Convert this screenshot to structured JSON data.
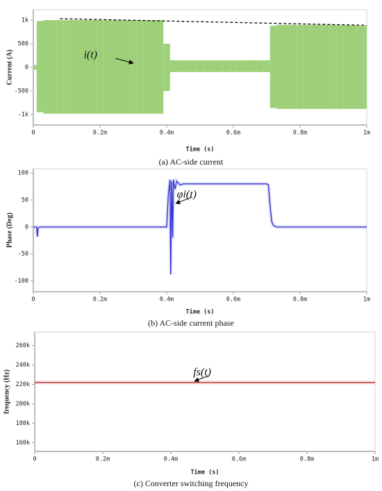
{
  "chart_data": [
    {
      "type": "range",
      "xlabel": "Time (s)",
      "ylabel": "Current (A)",
      "caption": "(a) AC-side current",
      "annotation": "i(t)",
      "xlim": [
        0,
        0.001
      ],
      "xticks": [
        0,
        {
          "value": 0.0002,
          "label": "0.2m"
        },
        {
          "value": 0.0004,
          "label": "0.4m"
        },
        {
          "value": 0.0006,
          "label": "0.6m"
        },
        {
          "value": 0.0008,
          "label": "0.8m"
        },
        {
          "value": 0.001,
          "label": "1m"
        }
      ],
      "ylim": [
        -1220,
        1220
      ],
      "yticks": [
        {
          "value": 1000,
          "label": "1k"
        },
        500,
        0,
        -500,
        {
          "value": -1000,
          "label": "-1k"
        }
      ],
      "x": [
        0,
        2e-05,
        4e-05,
        6e-05,
        8e-05,
        0.0001,
        0.00012,
        0.00014,
        0.00016,
        0.00018,
        0.0002,
        0.00022,
        0.00024,
        0.00026,
        0.00028,
        0.0003,
        0.00032,
        0.00034,
        0.00036,
        0.00038,
        0.0004,
        0.00042,
        0.00044,
        0.00046,
        0.00048,
        0.0005,
        0.00052,
        0.00054,
        0.00056,
        0.00058,
        0.0006,
        0.00062,
        0.00064,
        0.00066,
        0.00068,
        0.0007,
        0.00072,
        0.00074,
        0.00076,
        0.00078,
        0.0008,
        0.00082,
        0.00084,
        0.00086,
        0.00088,
        0.0009,
        0.00092,
        0.00094,
        0.00096,
        0.00098,
        0.001
      ],
      "series": [
        {
          "color": "#9ed07a",
          "values": [
            50,
            980,
            1000,
            1000,
            1000,
            1000,
            1000,
            1000,
            1000,
            1000,
            1000,
            1000,
            1000,
            1000,
            1000,
            1000,
            1000,
            1000,
            1000,
            1000,
            500,
            150,
            150,
            150,
            150,
            150,
            150,
            150,
            150,
            150,
            150,
            150,
            150,
            150,
            150,
            150,
            880,
            900,
            900,
            900,
            900,
            900,
            900,
            900,
            900,
            900,
            890,
            890,
            890,
            880,
            880
          ]
        },
        {
          "color": "#9ed07a",
          "values": [
            -50,
            -950,
            -980,
            -980,
            -980,
            -980,
            -980,
            -980,
            -980,
            -980,
            -980,
            -980,
            -980,
            -980,
            -980,
            -980,
            -980,
            -980,
            -980,
            -980,
            -500,
            -100,
            -100,
            -100,
            -100,
            -100,
            -100,
            -100,
            -100,
            -100,
            -100,
            -100,
            -100,
            -100,
            -100,
            -100,
            -860,
            -880,
            -880,
            -880,
            -880,
            -880,
            -880,
            -880,
            -880,
            -880,
            -880,
            -880,
            -880,
            -880,
            -880
          ]
        }
      ],
      "reference_line": {
        "color": "#000000",
        "x": [
          8e-05,
          0.001
        ],
        "values": [
          1030,
          890
        ]
      }
    },
    {
      "type": "line",
      "xlabel": "Time (s)",
      "ylabel": "Phase (Deg)",
      "caption": "(b) AC-side current phase",
      "annotation": "φi(t)",
      "xlim": [
        0,
        0.001
      ],
      "xticks": [
        0,
        {
          "value": 0.0002,
          "label": "0.2m"
        },
        {
          "value": 0.0004,
          "label": "0.4m"
        },
        {
          "value": 0.0006,
          "label": "0.6m"
        },
        {
          "value": 0.0008,
          "label": "0.8m"
        },
        {
          "value": 0.001,
          "label": "1m"
        }
      ],
      "ylim": [
        -120,
        108
      ],
      "yticks": [
        100,
        50,
        0,
        -50,
        -100
      ],
      "x": [
        0,
        1e-05,
        1.2e-05,
        1.4e-05,
        2e-05,
        0.0004,
        0.000405,
        0.00041,
        0.000412,
        0.000415,
        0.000418,
        0.00042,
        0.000425,
        0.00043,
        0.00044,
        0.00045,
        0.0007,
        0.000705,
        0.00071,
        0.000715,
        0.00072,
        0.00073,
        0.001
      ],
      "series": [
        {
          "color": "#2b2bd0",
          "values": [
            0,
            0,
            -18,
            -2,
            0,
            0,
            60,
            88,
            -88,
            85,
            -20,
            88,
            70,
            85,
            78,
            80,
            80,
            78,
            40,
            10,
            3,
            0,
            0
          ]
        }
      ]
    },
    {
      "type": "line",
      "xlabel": "Time (s)",
      "ylabel": "frequency (Hz)",
      "caption": "(c) Converter switching frequency",
      "annotation": "fs(t)",
      "xlim": [
        0,
        0.001
      ],
      "xticks": [
        0,
        {
          "value": 0.0002,
          "label": "0.2m"
        },
        {
          "value": 0.0004,
          "label": "0.4m"
        },
        {
          "value": 0.0006,
          "label": "0.6m"
        },
        {
          "value": 0.0008,
          "label": "0.8m"
        },
        {
          "value": 0.001,
          "label": "1m"
        }
      ],
      "ylim": [
        151000,
        274000
      ],
      "yticks": [
        {
          "value": 260000,
          "label": "260k"
        },
        {
          "value": 240000,
          "label": "240k"
        },
        {
          "value": 220000,
          "label": "220k"
        },
        {
          "value": 200000,
          "label": "200k"
        },
        {
          "value": 180000,
          "label": "180k"
        },
        {
          "value": 160000,
          "label": "160k"
        }
      ],
      "x": [
        0,
        0.001
      ],
      "series": [
        {
          "color": "#c0181a",
          "values": [
            222000,
            222000
          ]
        }
      ]
    }
  ]
}
